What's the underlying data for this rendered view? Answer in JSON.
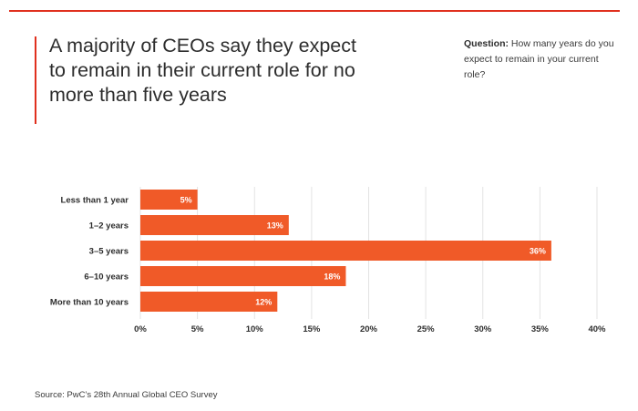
{
  "header": {
    "title": "A majority of CEOs say they expect to remain in their current role for no more than five years",
    "question_label": "Question:",
    "question_text": "How many years do you expect to remain in your current role?"
  },
  "source": "Source: PwC’s 28th Annual Global CEO Survey",
  "colors": {
    "accent": "#e0301e",
    "bar": "#f05a28",
    "grid": "#e3e3e3"
  },
  "chart_data": {
    "type": "bar",
    "orientation": "horizontal",
    "categories": [
      "Less than 1 year",
      "1–2 years",
      "3–5 years",
      "6–10 years",
      "More than 10 years"
    ],
    "values": [
      5,
      13,
      36,
      18,
      12
    ],
    "value_labels": [
      "5%",
      "13%",
      "36%",
      "18%",
      "12%"
    ],
    "xlim": [
      0,
      40
    ],
    "ticks": [
      0,
      5,
      10,
      15,
      20,
      25,
      30,
      35,
      40
    ],
    "tick_labels": [
      "0%",
      "5%",
      "10%",
      "15%",
      "20%",
      "25%",
      "30%",
      "35%",
      "40%"
    ],
    "grid": true,
    "title": "",
    "xlabel": "",
    "ylabel": ""
  }
}
